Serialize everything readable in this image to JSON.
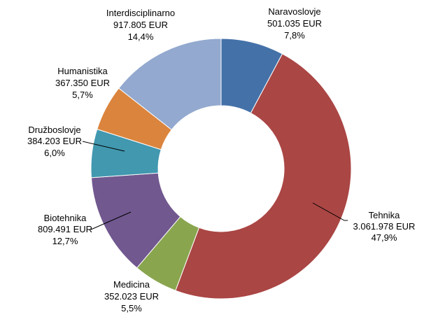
{
  "chart_data": {
    "type": "pie",
    "variant": "donut",
    "title": "",
    "legend": "none",
    "slices": [
      {
        "name": "Naravoslovje",
        "amount": "501.035 EUR",
        "percent_label": "7,8%",
        "value": 7.8,
        "color": "#4472a8"
      },
      {
        "name": "Tehnika",
        "amount": "3.061.978 EUR",
        "percent_label": "47,9%",
        "value": 47.9,
        "color": "#aa4644"
      },
      {
        "name": "Medicina",
        "amount": "352.023 EUR",
        "percent_label": "5,5%",
        "value": 5.5,
        "color": "#89a54e"
      },
      {
        "name": "Biotehnika",
        "amount": "809.491 EUR",
        "percent_label": "12,7%",
        "value": 12.7,
        "color": "#71588f"
      },
      {
        "name": "Družboslovje",
        "amount": "384.203 EUR",
        "percent_label": "6,0%",
        "value": 6.0,
        "color": "#4198af"
      },
      {
        "name": "Humanistika",
        "amount": "367.350 EUR",
        "percent_label": "5,7%",
        "value": 5.7,
        "color": "#db843d"
      },
      {
        "name": "Interdisciplinarno",
        "amount": "917.805 EUR",
        "percent_label": "14,4%",
        "value": 14.4,
        "color": "#93a9cf"
      }
    ]
  }
}
